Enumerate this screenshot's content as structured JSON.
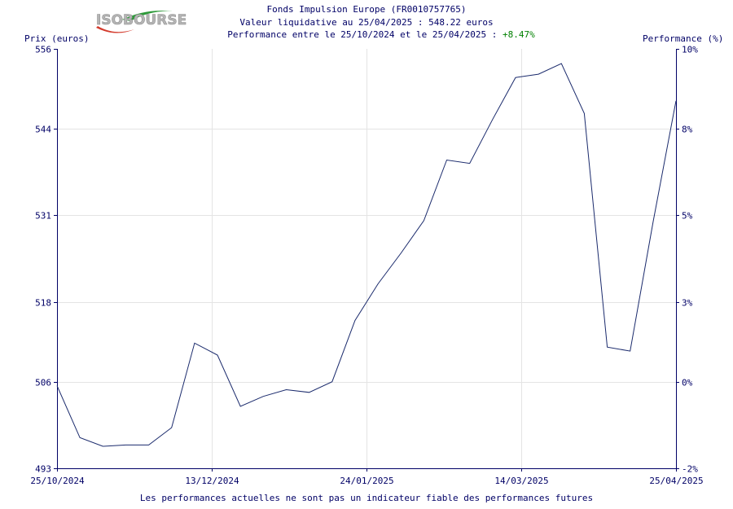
{
  "logo": {
    "text": "ISOBOURSE",
    "colors": {
      "green": "#2e9a3a",
      "red": "#d33a2c",
      "gray": "#b5b5b5"
    }
  },
  "header": {
    "line1": "Fonds Impulsion Europe (FR0010757765)",
    "line2": "Valeur liquidative au 25/04/2025 : 548.22 euros",
    "line3_prefix": "Performance entre le 25/10/2024 et le 25/04/2025 : ",
    "line3_value": "+8.47%"
  },
  "footer": "Les performances actuelles ne sont pas un indicateur fiable des performances futures",
  "colors": {
    "line": "#1a2a6c",
    "text": "#000066",
    "positive": "#008000",
    "grid": "#e4e4e4"
  },
  "chart_data": {
    "type": "line",
    "ylabel_left": "Prix (euros)",
    "ylabel_right": "Performance (%)",
    "ylim": [
      493,
      556
    ],
    "y_ticks": [
      493,
      506,
      518,
      531,
      544,
      556
    ],
    "y_tick_labels": [
      "493",
      "506",
      "518",
      "531",
      "544",
      "556"
    ],
    "y2_tick_labels": [
      "-2%",
      "0%",
      "3%",
      "5%",
      "8%",
      "10%"
    ],
    "x_tick_labels": [
      "25/10/2024",
      "13/12/2024",
      "24/01/2025",
      "14/03/2025",
      "25/04/2025"
    ],
    "grid": true,
    "series": [
      {
        "values": [
          505.4,
          497.6,
          496.3,
          496.5,
          496.5,
          499.1,
          511.8,
          510.0,
          502.3,
          503.8,
          504.8,
          504.4,
          506.0,
          515.2,
          520.7,
          525.3,
          530.2,
          539.3,
          538.8,
          545.4,
          551.7,
          552.2,
          553.8,
          546.3,
          511.2,
          510.6,
          530.0,
          548.2
        ]
      }
    ]
  }
}
